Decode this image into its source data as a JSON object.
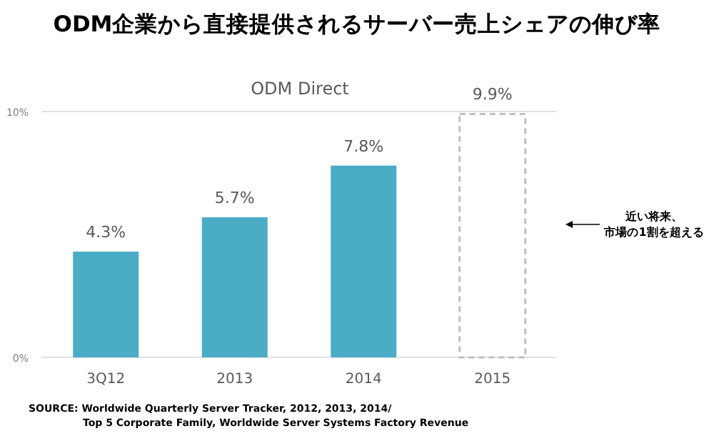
{
  "chart_data": {
    "type": "bar",
    "title": "ODM企業から直接提供されるサーバー売上シェアの伸び率",
    "subtitle": "ODM Direct",
    "categories": [
      "3Q12",
      "2013",
      "2014",
      "2015"
    ],
    "series": [
      {
        "color": "#4bacc6",
        "values": [
          4.3,
          5.7,
          7.8,
          null
        ],
        "value_labels": [
          "4.3%",
          "5.7%",
          "7.8%",
          null
        ]
      },
      {
        "color": "#bfbfbf",
        "line_style": "dashed",
        "values": [
          null,
          null,
          null,
          9.9
        ],
        "value_labels": [
          null,
          null,
          null,
          "9.9%"
        ]
      }
    ],
    "ylim": [
      0,
      10
    ],
    "yticks": [
      {
        "value": 0,
        "label": "0%"
      },
      {
        "value": 10,
        "label": "10%"
      }
    ],
    "annotations": [
      "近い将来、",
      "市場の1割を超える",
      "SOURCE: Worldwide Quarterly Server Tracker, 2012, 2013, 2014/\nTop 5 Corporate Family, Worldwide Server Systems Factory Revenue"
    ]
  }
}
